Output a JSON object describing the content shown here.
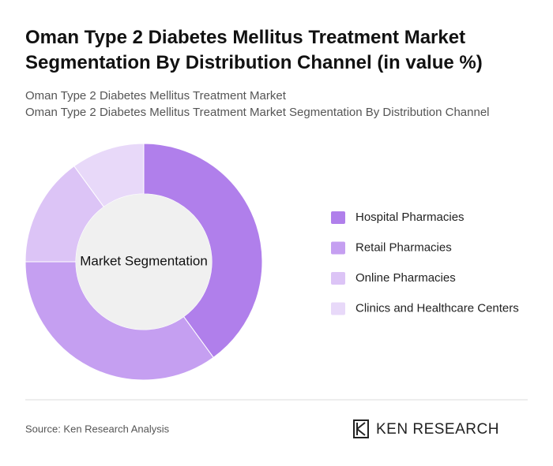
{
  "chart_data": {
    "type": "pie",
    "title": [
      "Oman Type 2 Diabetes Mellitus Treatment Market",
      "Segmentation By Distribution Channel (in value %)"
    ],
    "subtitle": [
      "Oman Type 2 Diabetes Mellitus Treatment Market",
      "Oman Type 2 Diabetes Mellitus Treatment Market Segmentation By Distribution Channel"
    ],
    "center_label": "Market Segmentation",
    "categories": [
      "Hospital Pharmacies",
      "Retail Pharmacies",
      "Online Pharmacies",
      "Clinics and Healthcare Centers"
    ],
    "values": [
      40,
      35,
      15,
      10
    ],
    "colors": [
      "#b07feb",
      "#c59ff1",
      "#dcc4f6",
      "#e8d9f9"
    ]
  },
  "source": "Source: Ken Research Analysis",
  "logo": "KEN RESEARCH"
}
